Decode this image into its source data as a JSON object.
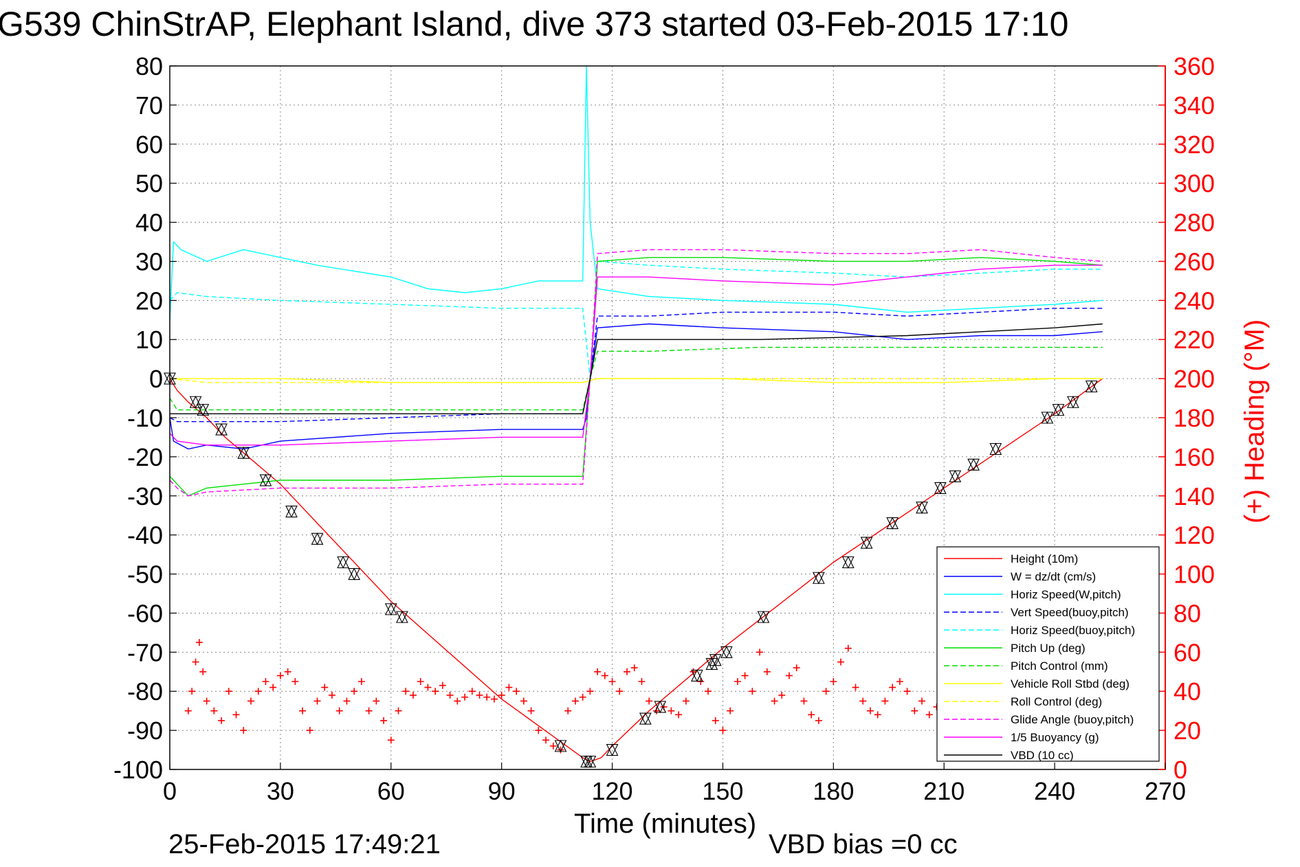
{
  "chart_data": {
    "type": "line",
    "title": "G539 ChinStrAP, Elephant Island, dive 373 started 03-Feb-2015 17:10",
    "xlabel": "Time (minutes)",
    "ylabel": "",
    "y2label": "(+) Heading (°M)",
    "xlim": [
      0,
      270
    ],
    "ylim": [
      -100,
      80
    ],
    "y2lim": [
      0,
      360
    ],
    "xticks": [
      "0",
      "30",
      "60",
      "90",
      "120",
      "150",
      "180",
      "210",
      "240",
      "270"
    ],
    "yticks": [
      "-100",
      "-90",
      "-80",
      "-70",
      "-60",
      "-50",
      "-40",
      "-30",
      "-20",
      "-10",
      "0",
      "10",
      "20",
      "30",
      "40",
      "50",
      "60",
      "70",
      "80"
    ],
    "y2ticks": [
      "0",
      "20",
      "40",
      "60",
      "80",
      "100",
      "120",
      "140",
      "160",
      "180",
      "200",
      "220",
      "240",
      "260",
      "280",
      "300",
      "320",
      "340",
      "360"
    ],
    "grid": true,
    "legend_position": "lower-right",
    "footer_left": "25-Feb-2015 17:49:21",
    "footer_right": "VBD bias =0 cc",
    "series": [
      {
        "name": "Height (10m)",
        "color": "#ff0000",
        "style": "solid",
        "axis": "left",
        "x": [
          0,
          2,
          5,
          10,
          15,
          20,
          30,
          40,
          60,
          90,
          112,
          114,
          117,
          120,
          130,
          150,
          180,
          210,
          240,
          253
        ],
        "y": [
          0,
          -3,
          -6,
          -10,
          -15,
          -19,
          -27,
          -37,
          -57,
          -82,
          -97,
          -98,
          -97,
          -94,
          -85,
          -69,
          -47,
          -28,
          -9,
          0
        ]
      },
      {
        "name": "W = dz/dt (cm/s)",
        "color": "#0000ff",
        "style": "solid",
        "axis": "left",
        "x": [
          0,
          1,
          5,
          10,
          20,
          30,
          60,
          90,
          112,
          113,
          114,
          116,
          130,
          150,
          180,
          200,
          220,
          240,
          253
        ],
        "y": [
          -10,
          -16,
          -18,
          -17,
          -18,
          -16,
          -14,
          -13,
          -13,
          -10,
          0,
          13,
          14,
          13,
          12,
          10,
          11,
          11,
          12
        ]
      },
      {
        "name": "Horiz Speed(W,pitch)",
        "color": "#00ffff",
        "style": "solid",
        "axis": "left",
        "x": [
          0,
          1,
          3,
          10,
          20,
          30,
          40,
          60,
          70,
          80,
          90,
          100,
          112,
          113,
          114,
          116,
          130,
          150,
          180,
          200,
          220,
          240,
          253
        ],
        "y": [
          15,
          35,
          33,
          30,
          33,
          31,
          29,
          26,
          23,
          22,
          23,
          25,
          25,
          80,
          40,
          23,
          21,
          20,
          19,
          17,
          18,
          19,
          20
        ]
      },
      {
        "name": "Vert Speed(buoy,pitch)",
        "color": "#0000ff",
        "style": "dashed",
        "axis": "left",
        "x": [
          0,
          2,
          10,
          30,
          60,
          90,
          112,
          114,
          116,
          130,
          150,
          180,
          200,
          220,
          240,
          253
        ],
        "y": [
          -10,
          -11,
          -11,
          -11,
          -10,
          -9,
          -9,
          0,
          16,
          16,
          17,
          17,
          16,
          17,
          18,
          18
        ]
      },
      {
        "name": "Horiz Speed(buoy,pitch)",
        "color": "#00ffff",
        "style": "dashed",
        "axis": "left",
        "x": [
          0,
          2,
          10,
          30,
          60,
          90,
          112,
          114,
          116,
          130,
          150,
          180,
          200,
          220,
          240,
          253
        ],
        "y": [
          20,
          22,
          21,
          20,
          19,
          18,
          18,
          0,
          30,
          29,
          28,
          27,
          26,
          27,
          28,
          28
        ]
      },
      {
        "name": "Pitch Up (deg)",
        "color": "#00dd00",
        "style": "solid",
        "axis": "left",
        "x": [
          0,
          2,
          5,
          10,
          20,
          30,
          60,
          90,
          112,
          114,
          116,
          130,
          150,
          180,
          200,
          220,
          240,
          253
        ],
        "y": [
          -25,
          -27,
          -30,
          -28,
          -27,
          -26,
          -26,
          -25,
          -25,
          0,
          30,
          31,
          31,
          30,
          30,
          31,
          30,
          29
        ]
      },
      {
        "name": "Pitch Control (mm)",
        "color": "#00dd00",
        "style": "dashed",
        "axis": "left",
        "x": [
          0,
          2,
          10,
          60,
          112,
          114,
          116,
          130,
          160,
          200,
          240,
          253
        ],
        "y": [
          -5,
          -8,
          -8,
          -8,
          -8,
          0,
          7,
          7,
          8,
          8,
          8,
          8
        ]
      },
      {
        "name": "Vehicle Roll Stbd (deg)",
        "color": "#ffff00",
        "style": "solid",
        "axis": "left",
        "x": [
          0,
          10,
          30,
          60,
          90,
          112,
          116,
          150,
          180,
          210,
          240,
          253
        ],
        "y": [
          0,
          0,
          0,
          -1,
          -1,
          -1,
          0,
          0,
          -1,
          -1,
          0,
          0
        ]
      },
      {
        "name": "Roll Control (deg)",
        "color": "#ffff00",
        "style": "dashed",
        "axis": "left",
        "x": [
          0,
          10,
          60,
          112,
          116,
          180,
          253
        ],
        "y": [
          0,
          -1,
          -1,
          -1,
          0,
          0,
          0
        ]
      },
      {
        "name": "Glide Angle (buoy,pitch)",
        "color": "#ff00ff",
        "style": "dashed",
        "axis": "left",
        "x": [
          0,
          2,
          5,
          10,
          30,
          60,
          90,
          112,
          114,
          116,
          130,
          150,
          180,
          200,
          220,
          240,
          253
        ],
        "y": [
          -26,
          -28,
          -30,
          -29,
          -28,
          -28,
          -27,
          -27,
          0,
          32,
          33,
          33,
          32,
          32,
          33,
          31,
          30
        ]
      },
      {
        "name": "1/5 Buoyancy (g)",
        "color": "#ff00ff",
        "style": "solid",
        "axis": "left",
        "x": [
          0,
          2,
          10,
          30,
          60,
          90,
          112,
          114,
          116,
          130,
          150,
          180,
          200,
          220,
          240,
          253
        ],
        "y": [
          -14,
          -16,
          -17,
          -17,
          -16,
          -15,
          -15,
          0,
          26,
          26,
          25,
          24,
          26,
          28,
          29,
          29
        ]
      },
      {
        "name": "VBD (10 cc)",
        "color": "#000000",
        "style": "solid",
        "axis": "left",
        "x": [
          0,
          2,
          112,
          114,
          116,
          130,
          160,
          200,
          240,
          253
        ],
        "y": [
          -9,
          -9,
          -9,
          0,
          10,
          10,
          10,
          11,
          13,
          14
        ]
      }
    ],
    "heading_series": {
      "name": "Heading",
      "color": "#ff0000",
      "marker": "+",
      "axis": "right",
      "x": [
        5,
        6,
        7,
        8,
        9,
        10,
        12,
        14,
        16,
        18,
        20,
        22,
        24,
        26,
        28,
        30,
        32,
        34,
        36,
        38,
        40,
        42,
        44,
        46,
        48,
        50,
        52,
        54,
        56,
        58,
        60,
        62,
        64,
        66,
        68,
        70,
        72,
        74,
        76,
        78,
        80,
        82,
        84,
        86,
        88,
        90,
        92,
        94,
        96,
        98,
        100,
        102,
        104,
        106,
        108,
        110,
        112,
        114,
        116,
        118,
        120,
        122,
        124,
        126,
        128,
        130,
        132,
        134,
        136,
        138,
        140,
        142,
        144,
        146,
        148,
        150,
        152,
        154,
        156,
        158,
        160,
        162,
        164,
        166,
        168,
        170,
        172,
        174,
        176,
        178,
        180,
        182,
        184,
        186,
        188,
        190,
        192,
        194,
        196,
        198,
        200,
        202,
        204,
        206,
        208
      ],
      "y": [
        30,
        40,
        55,
        65,
        50,
        35,
        30,
        25,
        40,
        28,
        20,
        35,
        40,
        45,
        42,
        48,
        50,
        45,
        30,
        20,
        35,
        42,
        38,
        30,
        35,
        40,
        45,
        30,
        35,
        25,
        15,
        30,
        40,
        38,
        45,
        42,
        40,
        43,
        38,
        35,
        37,
        40,
        38,
        37,
        36,
        38,
        42,
        40,
        35,
        30,
        20,
        15,
        12,
        10,
        30,
        35,
        37,
        40,
        50,
        48,
        45,
        40,
        50,
        52,
        45,
        35,
        30,
        32,
        30,
        28,
        35,
        50,
        45,
        40,
        25,
        20,
        30,
        45,
        48,
        40,
        60,
        50,
        35,
        38,
        48,
        52,
        35,
        28,
        25,
        40,
        45,
        55,
        62,
        42,
        35,
        30,
        28,
        35,
        42,
        45,
        40,
        30,
        35,
        28,
        32
      ]
    },
    "height_markers": {
      "x": [
        0,
        7,
        9,
        14,
        20,
        26,
        33,
        40,
        47,
        50,
        60,
        63,
        106,
        113,
        114,
        120,
        129,
        133,
        143,
        147,
        148,
        151,
        161,
        176,
        184,
        189,
        196,
        204,
        209,
        213,
        218,
        224,
        238,
        241,
        245,
        250
      ],
      "y": [
        0,
        -6,
        -8,
        -13,
        -19,
        -26,
        -34,
        -41,
        -47,
        -50,
        -59,
        -61,
        -94,
        -98,
        -98,
        -95,
        -87,
        -84,
        -76,
        -73,
        -72,
        -70,
        -61,
        -51,
        -47,
        -42,
        -37,
        -33,
        -28,
        -25,
        -22,
        -18,
        -10,
        -8,
        -6,
        -2
      ]
    }
  }
}
